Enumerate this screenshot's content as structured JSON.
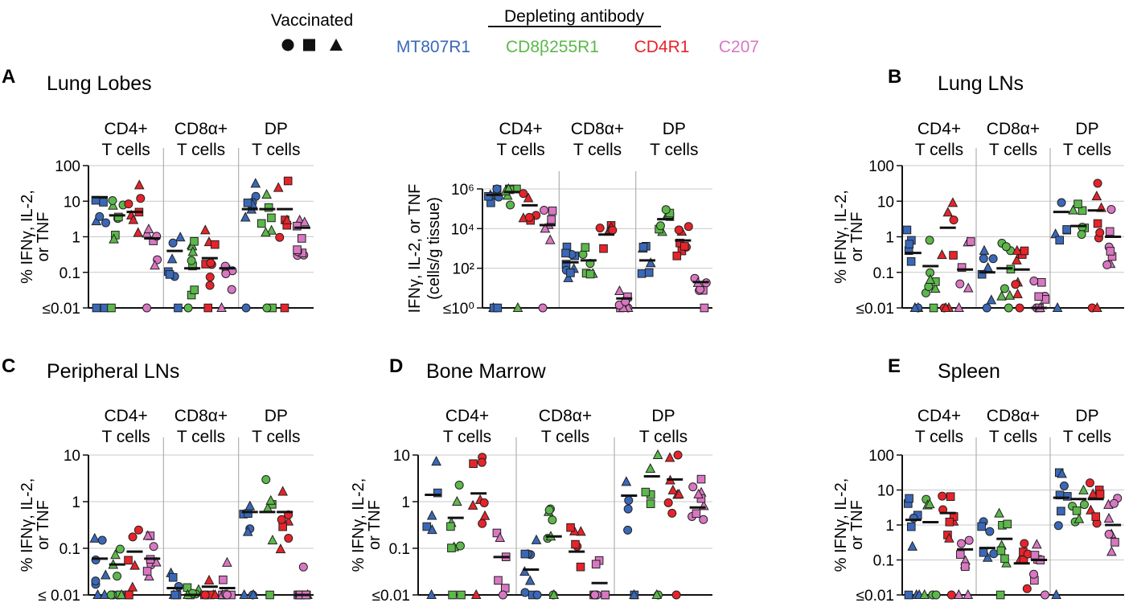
{
  "legend": {
    "shape_title": "Vaccinated",
    "shapes": [
      "circle",
      "square",
      "triangle"
    ],
    "color_title": "Depleting antibody",
    "groups": [
      {
        "label": "MT807R1",
        "color": "#3a68b8"
      },
      {
        "label": "CD8β255R1",
        "color": "#5cb84a"
      },
      {
        "label": "CD4R1",
        "color": "#e8232a"
      },
      {
        "label": "C207",
        "color": "#d977c2"
      }
    ]
  },
  "subsets": [
    {
      "line1": "CD4+",
      "line2": "T cells"
    },
    {
      "line1": "CD8α+",
      "line2": "T cells"
    },
    {
      "line1": "DP",
      "line2": "T cells"
    }
  ],
  "chart_data": [
    {
      "type": "scatter",
      "panel_letter": "A",
      "title": "Lung Lobes",
      "ylabel": "% IFNγ, IL-2, or TNF",
      "ylabel_lines": [
        "% IFNγ, IL-2,",
        "or TNF"
      ],
      "yscale": "log",
      "ylim": [
        0.01,
        100
      ],
      "ytick_values": [
        0.01,
        0.1,
        1,
        10,
        100
      ],
      "ytick_labels": [
        "≤0.01",
        "0.1",
        "1",
        "10",
        "100"
      ],
      "medians": [
        [
          13,
          4,
          5,
          0.9
        ],
        [
          0.4,
          0.13,
          0.25,
          0.13
        ],
        [
          6,
          6,
          6,
          1.8
        ]
      ]
    },
    {
      "type": "scatter",
      "panel_letter": "",
      "title": "",
      "ylabel": "IFNγ, IL-2, or TNF (cells/g tissue)",
      "ylabel_lines": [
        "IFNγ, IL-2, or TNF",
        "(cells/g tissue)"
      ],
      "yscale": "log",
      "ylim": [
        1,
        1000000
      ],
      "ytick_values": [
        1,
        100,
        10000,
        1000000
      ],
      "ytick_labels": [
        "≤10⁰",
        "10²",
        "10⁴",
        "10⁶"
      ],
      "medians": [
        [
          500000,
          700000,
          150000,
          15000
        ],
        [
          200,
          250,
          5000,
          3
        ],
        [
          250,
          30000,
          2500,
          20
        ]
      ]
    },
    {
      "type": "scatter",
      "panel_letter": "B",
      "title": "Lung LNs",
      "ylabel": "% IFNγ, IL-2, or TNF",
      "ylabel_lines": [
        "% IFNγ, IL-2,",
        "or TNF"
      ],
      "yscale": "log",
      "ylim": [
        0.01,
        100
      ],
      "ytick_values": [
        0.01,
        0.1,
        1,
        10,
        100
      ],
      "ytick_labels": [
        "≤0.01",
        "0.1",
        "1",
        "10",
        "100"
      ],
      "medians": [
        [
          0.35,
          0.15,
          1.8,
          0.12
        ],
        [
          0.1,
          0.13,
          0.12,
          0.01
        ],
        [
          5,
          2,
          5.5,
          1
        ]
      ]
    },
    {
      "type": "scatter",
      "panel_letter": "C",
      "title": "Peripheral LNs",
      "ylabel": "% IFNγ, IL-2, or TNF",
      "ylabel_lines": [
        "% IFNγ, IL-2,",
        "or TNF"
      ],
      "yscale": "log",
      "ylim": [
        0.01,
        10
      ],
      "ytick_values": [
        0.01,
        0.1,
        1,
        10
      ],
      "ytick_labels": [
        "≤ 0.01",
        "0.1",
        "1",
        "10"
      ],
      "medians": [
        [
          0.06,
          0.045,
          0.085,
          0.06
        ],
        [
          0.014,
          0.01,
          0.015,
          0.014
        ],
        [
          0.6,
          0.6,
          0.6,
          0.01
        ]
      ]
    },
    {
      "type": "scatter",
      "panel_letter": "D",
      "title": "Bone Marrow",
      "ylabel": "% IFNγ, IL-2, or TNF",
      "ylabel_lines": [
        "% IFNγ, IL-2,",
        "or TNF"
      ],
      "yscale": "log",
      "ylim": [
        0.01,
        10
      ],
      "ytick_values": [
        0.01,
        0.1,
        1,
        10
      ],
      "ytick_labels": [
        "≤0.01",
        "0.1",
        "1",
        "10"
      ],
      "medians": [
        [
          1.4,
          0.45,
          1.5,
          0.065
        ],
        [
          0.035,
          0.18,
          0.085,
          0.018
        ],
        [
          1.35,
          3.5,
          3,
          0.75
        ]
      ]
    },
    {
      "type": "scatter",
      "panel_letter": "E",
      "title": "Spleen",
      "ylabel": "% IFNγ, IL-2, or TNF",
      "ylabel_lines": [
        "% IFNγ, IL-2,",
        "or TNF"
      ],
      "yscale": "log",
      "ylim": [
        0.01,
        100
      ],
      "ytick_values": [
        0.01,
        0.1,
        1,
        10,
        100
      ],
      "ytick_labels": [
        "≤0.01",
        "0.1",
        "1",
        "10",
        "100"
      ],
      "medians": [
        [
          1.4,
          1.2,
          2.2,
          0.2
        ],
        [
          0.22,
          0.4,
          0.08,
          0.1
        ],
        [
          6,
          5.5,
          5.5,
          1
        ]
      ]
    }
  ]
}
